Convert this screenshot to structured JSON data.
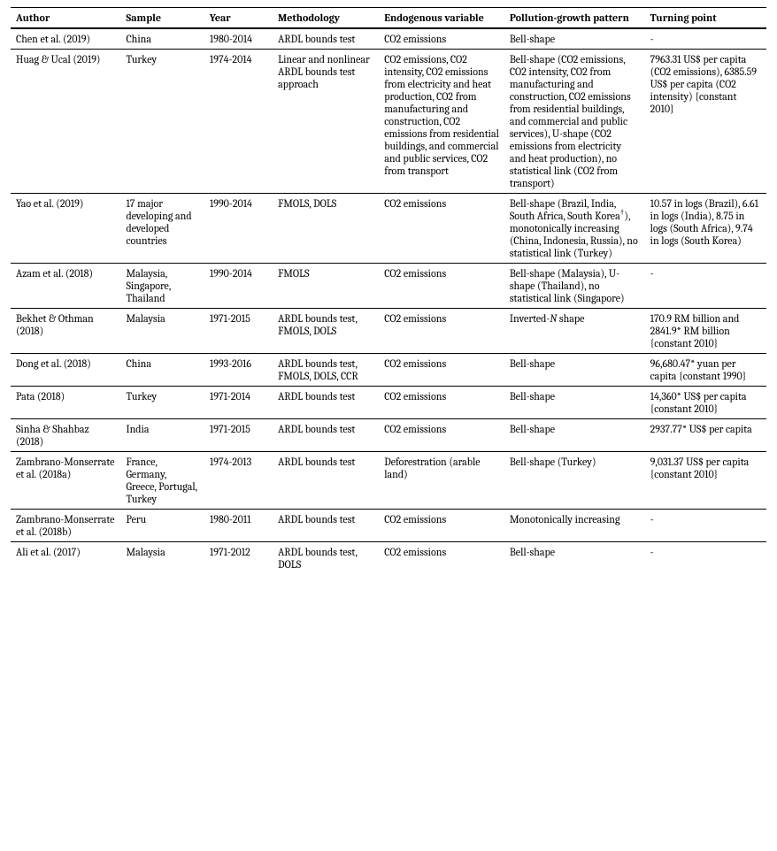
{
  "columns": [
    "Author",
    "Sample",
    "Year",
    "Methodology",
    "Endogenous variable",
    "Pollution-growth pattern",
    "Turning point"
  ],
  "rows": [
    {
      "author": "Chen et al. (2019)",
      "sample": "China",
      "year": "1980-2014",
      "methodology": "ARDL bounds test",
      "endogenous": "CO2 emissions",
      "pattern": "Bell-shape",
      "turning": "-"
    },
    {
      "author": "Huag & Ucal (2019)",
      "sample": "Turkey",
      "year": "1974-2014",
      "methodology": "Linear and nonlinear ARDL bounds test approach",
      "endogenous": "CO2 emissions, CO2 intensity, CO2 emissions from electricity and heat production, CO2 from manufacturing and construction, CO2 emissions from residential buildings, and commercial and public services, CO2 from transport",
      "pattern": "Bell-shape (CO2 emissions, CO2 intensity, CO2 from manufacturing and construction, CO2 emissions from residential buildings, and commercial and public services), U-shape (CO2 emissions from electricity and heat production), no statistical link (CO2 from transport)",
      "turning": "7963.31 US$ per capita (CO2 emissions), 6385.59 US$ per capita (CO2 intensity) {constant 2010}"
    },
    {
      "author": "Yao et al. (2019)",
      "sample": "17 major developing and developed countries",
      "year": "1990-2014",
      "methodology": "FMOLS, DOLS",
      "endogenous": "CO2 emissions",
      "pattern_html": "Bell-shape (Brazil, India, South Africa, South Korea<sup>†</sup>), monotonically increasing (China, Indonesia, Russia), no statistical link (Turkey)",
      "turning": "10.57 in logs (Brazil), 6.61 in logs (India), 8.75 in logs (South Africa), 9.74 in logs (South Korea)"
    },
    {
      "author": "Azam et al. (2018)",
      "sample": "Malaysia, Singapore, Thailand",
      "year": "1990-2014",
      "methodology": "FMOLS",
      "endogenous": "CO2 emissions",
      "pattern": "Bell-shape (Malaysia), U-shape (Thailand), no statistical link (Singapore)",
      "turning": "-"
    },
    {
      "author": "Bekhet & Othman (2018)",
      "sample": "Malaysia",
      "year": "1971-2015",
      "methodology": "ARDL bounds test, FMOLS, DOLS",
      "endogenous": "CO2 emissions",
      "pattern_html": "Inverted-<span class=\"italic-n\">N</span> shape",
      "turning": "170.9 RM billion and 2841.9* RM billion {constant 2010}"
    },
    {
      "author": "Dong et al. (2018)",
      "sample": "China",
      "year": "1993-2016",
      "methodology": "ARDL bounds test, FMOLS, DOLS, CCR",
      "endogenous": "CO2 emissions",
      "pattern": "Bell-shape",
      "turning": "96,680.47* yuan per capita {constant 1990}"
    },
    {
      "author": "Pata (2018)",
      "sample": "Turkey",
      "year": "1971-2014",
      "methodology": "ARDL bounds test",
      "endogenous": "CO2 emissions",
      "pattern": "Bell-shape",
      "turning": "14,360* US$ per capita {constant 2010}"
    },
    {
      "author": "Sinha & Shahbaz (2018)",
      "sample": "India",
      "year": "1971-2015",
      "methodology": "ARDL bounds test",
      "endogenous": "CO2 emissions",
      "pattern": "Bell-shape",
      "turning": "2937.77* US$ per capita"
    },
    {
      "author": "Zambrano-Monserrate et al. (2018a)",
      "sample": "France, Germany, Greece, Portugal, Turkey",
      "year": "1974-2013",
      "methodology": "ARDL bounds test",
      "endogenous": "Deforestration (arable land)",
      "pattern": "Bell-shape (Turkey)",
      "turning": "9,031.37 US$ per capita {constant 2010}"
    },
    {
      "author": "Zambrano-Monserrate et al. (2018b)",
      "sample": "Peru",
      "year": "1980-2011",
      "methodology": "ARDL bounds test",
      "endogenous": "CO2 emissions",
      "pattern": "Monotonically increasing",
      "turning": "-"
    },
    {
      "author": "Ali et al. (2017)",
      "sample": "Malaysia",
      "year": "1971-2012",
      "methodology": "ARDL bounds test, DOLS",
      "endogenous": "CO2 emissions",
      "pattern": "Bell-shape",
      "turning": "-"
    }
  ],
  "column_classes": [
    "col-author",
    "col-sample",
    "col-year",
    "col-method",
    "col-endog",
    "col-pattern",
    "col-turning"
  ]
}
